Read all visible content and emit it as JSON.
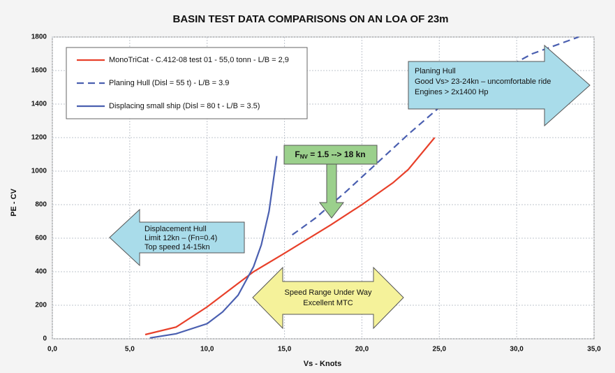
{
  "chart_data": {
    "type": "line",
    "title": "BASIN TEST DATA COMPARISONS ON AN LOA OF 23m",
    "x_label": "Vs - Knots",
    "y_label": "PE - CV",
    "xlim": [
      0,
      35
    ],
    "ylim": [
      0,
      1800
    ],
    "xticks": [
      {
        "value": 0,
        "label": "0,0"
      },
      {
        "value": 5,
        "label": "5,0"
      },
      {
        "value": 10,
        "label": "10,0"
      },
      {
        "value": 15,
        "label": "15,0"
      },
      {
        "value": 20,
        "label": "20,0"
      },
      {
        "value": 25,
        "label": "25,0"
      },
      {
        "value": 30,
        "label": "30,0"
      },
      {
        "value": 35,
        "label": "35,0"
      }
    ],
    "yticks": [
      0,
      200,
      400,
      600,
      800,
      1000,
      1200,
      1400,
      1600,
      1800
    ],
    "grid": true,
    "legend": "top-left",
    "series": [
      {
        "name": "MonoTriCat - C.412-08 test 01 - 55,0  tonn - L/B = 2,9",
        "color": "#e8402a",
        "line_style": "solid",
        "x": [
          6,
          8,
          10,
          12,
          13,
          15,
          18,
          20,
          22,
          23,
          24.7
        ],
        "values": [
          25,
          70,
          190,
          330,
          400,
          510,
          680,
          800,
          930,
          1010,
          1200
        ]
      },
      {
        "name": "Planing Hull  (Disl =  55  t) - L/B =  3.9",
        "color": "#4a5fb0",
        "line_style": "dashed",
        "x": [
          15.5,
          17,
          19,
          21,
          23,
          25,
          27,
          29,
          31,
          34
        ],
        "values": [
          620,
          720,
          880,
          1050,
          1220,
          1380,
          1500,
          1600,
          1700,
          1800
        ]
      },
      {
        "name": "Displacing small ship (Disl = 80 t - L/B = 3.5)",
        "color": "#4a5fb0",
        "line_style": "solid",
        "x": [
          6.3,
          8,
          10,
          11,
          12,
          13,
          13.5,
          14,
          14.5
        ],
        "values": [
          5,
          30,
          90,
          160,
          260,
          430,
          560,
          760,
          1090
        ]
      }
    ],
    "annotations": {
      "displacement": [
        "Displacement Hull",
        "Limit 12kn – (Fn=0.4)",
        "Top speed 14-15kn"
      ],
      "planing": [
        "Planing Hull",
        "Good Vs> 23-24kn – uncomfortable ride",
        "Engines > 2x1400 Hp"
      ],
      "froude": {
        "symbol": "F",
        "subscript": "NV",
        "text": " = 1.5 --> 18 kn"
      },
      "speed_range": [
        "Speed Range Under Way",
        "Excellent MTC"
      ]
    }
  }
}
